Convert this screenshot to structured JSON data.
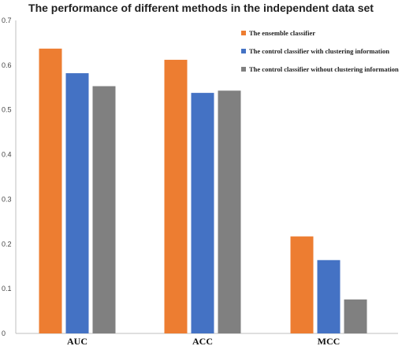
{
  "chart_data": {
    "type": "bar",
    "title": "The performance of different methods in the independent data set",
    "categories": [
      "AUC",
      "ACC",
      "MCC"
    ],
    "series": [
      {
        "name": "The ensemble classifier",
        "color": "#ED7D31",
        "values": [
          0.637,
          0.612,
          0.217
        ]
      },
      {
        "name": "The control classifier with clustering information",
        "color": "#4472C4",
        "values": [
          0.582,
          0.538,
          0.164
        ]
      },
      {
        "name": "The control classifier without clustering information",
        "color": "#808080",
        "values": [
          0.553,
          0.543,
          0.076
        ]
      }
    ],
    "ylim": [
      0,
      0.7
    ],
    "yticks": [
      "0",
      "0.1",
      "0.2",
      "0.3",
      "0.4",
      "0.5",
      "0.6",
      "0.7"
    ],
    "grid": false,
    "legend_position": "top-right"
  }
}
